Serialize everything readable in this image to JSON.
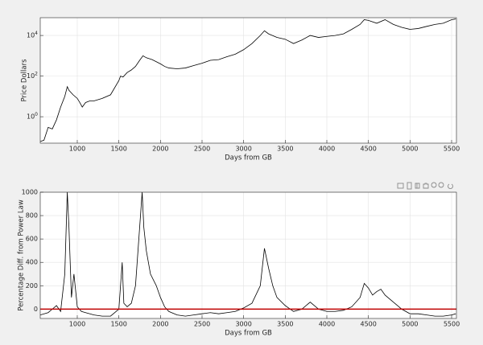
{
  "chart_data": [
    {
      "type": "line",
      "x_label": "Days from GB",
      "y_label": "Price Dollars",
      "log_scale": true,
      "grid": true,
      "xlim": [
        555,
        5558
      ],
      "ylim": [
        0.05,
        75000
      ],
      "xticks": [
        1000,
        1500,
        2000,
        2500,
        3000,
        3500,
        4000,
        4500,
        5000,
        5500
      ],
      "yticks": [
        {
          "value": 1,
          "label": "10^0"
        },
        {
          "value": 100,
          "label": "10^2"
        },
        {
          "value": 10000,
          "label": "10^4"
        }
      ],
      "x": [
        555,
        600,
        650,
        700,
        750,
        800,
        850,
        880,
        900,
        950,
        1000,
        1030,
        1060,
        1100,
        1150,
        1200,
        1300,
        1400,
        1500,
        1520,
        1550,
        1600,
        1650,
        1700,
        1750,
        1790,
        1830,
        1900,
        2000,
        2050,
        2100,
        2200,
        2300,
        2400,
        2500,
        2600,
        2700,
        2800,
        2900,
        3000,
        3100,
        3200,
        3250,
        3300,
        3400,
        3500,
        3600,
        3700,
        3800,
        3900,
        4000,
        4100,
        4200,
        4300,
        4400,
        4450,
        4500,
        4600,
        4700,
        4800,
        4900,
        5000,
        5100,
        5200,
        5300,
        5400,
        5500,
        5550
      ],
      "series": [
        {
          "color": "#000000",
          "values": [
            0.06,
            0.07,
            0.3,
            0.25,
            0.7,
            3,
            10,
            30,
            20,
            12,
            8,
            5,
            3,
            5,
            6,
            6,
            8,
            12,
            60,
            100,
            90,
            150,
            200,
            300,
            600,
            1000,
            800,
            650,
            400,
            300,
            250,
            230,
            250,
            330,
            430,
            600,
            650,
            900,
            1200,
            2000,
            4000,
            10000,
            17000,
            12000,
            8000,
            6500,
            4000,
            6000,
            10000,
            8000,
            9000,
            10000,
            12000,
            20000,
            35000,
            60000,
            55000,
            40000,
            60000,
            35000,
            25000,
            20000,
            22000,
            28000,
            35000,
            40000,
            60000,
            65000
          ]
        }
      ]
    },
    {
      "type": "line",
      "x_label": "Days from GB",
      "y_label": "Percentage Diff. from Power Law",
      "log_scale": false,
      "grid": true,
      "xlim": [
        555,
        5558
      ],
      "ylim": [
        -80,
        1000
      ],
      "xticks": [
        1000,
        1500,
        2000,
        2500,
        3000,
        3500,
        4000,
        4500,
        5000,
        5500
      ],
      "yticks": [
        0,
        200,
        400,
        600,
        800,
        1000
      ],
      "hline": {
        "value": 0,
        "color": "#c00000"
      },
      "x": [
        555,
        650,
        700,
        750,
        800,
        850,
        880,
        900,
        930,
        960,
        1000,
        1050,
        1100,
        1200,
        1300,
        1400,
        1500,
        1540,
        1560,
        1600,
        1650,
        1700,
        1780,
        1800,
        1830,
        1880,
        1950,
        2000,
        2050,
        2100,
        2200,
        2300,
        2400,
        2500,
        2600,
        2700,
        2800,
        2900,
        3000,
        3100,
        3200,
        3250,
        3300,
        3350,
        3400,
        3500,
        3600,
        3700,
        3800,
        3900,
        4000,
        4100,
        4200,
        4300,
        4400,
        4450,
        4500,
        4550,
        4600,
        4650,
        4700,
        4800,
        4900,
        5000,
        5100,
        5200,
        5300,
        5400,
        5500,
        5550
      ],
      "series": [
        {
          "color": "#000000",
          "values": [
            -50,
            -30,
            0,
            30,
            -20,
            300,
            1000,
            700,
            100,
            300,
            20,
            -20,
            -30,
            -50,
            -60,
            -60,
            0,
            400,
            50,
            20,
            50,
            200,
            1000,
            700,
            500,
            300,
            200,
            100,
            20,
            -20,
            -50,
            -60,
            -50,
            -40,
            -30,
            -40,
            -30,
            -20,
            10,
            50,
            200,
            520,
            350,
            200,
            100,
            30,
            -20,
            0,
            60,
            0,
            -20,
            -20,
            -10,
            20,
            100,
            220,
            180,
            120,
            150,
            170,
            120,
            60,
            0,
            -40,
            -40,
            -50,
            -60,
            -60,
            -50,
            -40
          ]
        }
      ]
    }
  ]
}
